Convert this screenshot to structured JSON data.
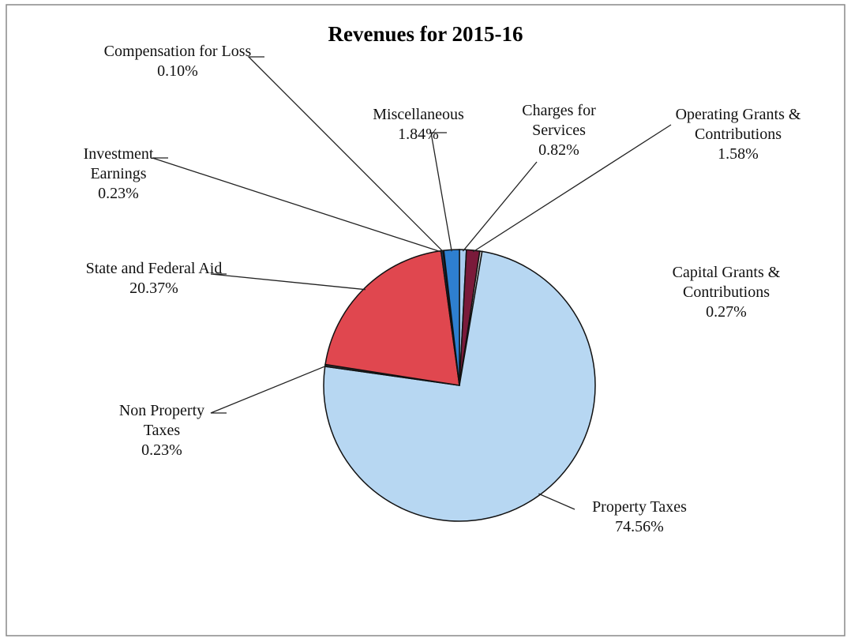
{
  "chart_data": {
    "type": "pie",
    "title": "Revenues for 2015-16",
    "categories": [
      "Charges for Services",
      "Operating Grants & Contributions",
      "Capital Grants & Contributions",
      "Property Taxes",
      "Non Property Taxes",
      "State and Federal Aid",
      "Investment Earnings",
      "Compensation for Loss",
      "Miscellaneous"
    ],
    "values": [
      0.82,
      1.58,
      0.27,
      74.56,
      0.23,
      20.37,
      0.23,
      0.1,
      1.84
    ],
    "value_labels": [
      "0.82%",
      "1.58%",
      "0.27%",
      "74.56%",
      "0.23%",
      "20.37%",
      "0.23%",
      "0.10%",
      "1.84%"
    ],
    "colors": [
      "#a9cdef",
      "#7a1a3a",
      "#d8d8d8",
      "#b7d7f2",
      "#3a3a3a",
      "#e0474f",
      "#1f3a66",
      "#7f7f7f",
      "#2e7fd0"
    ]
  }
}
